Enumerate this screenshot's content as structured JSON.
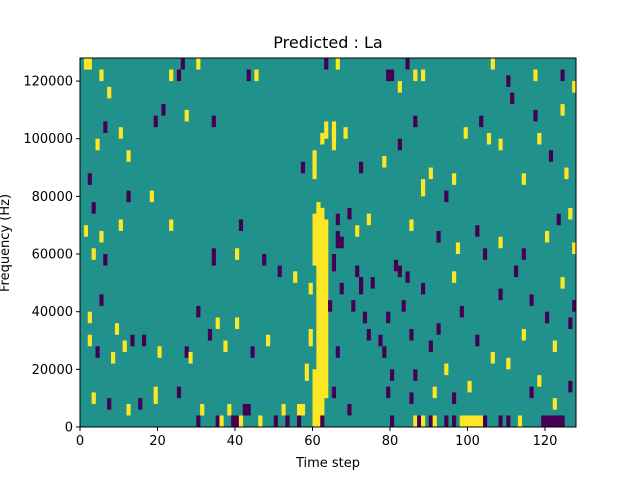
{
  "chart_data": {
    "type": "heatmap",
    "title": "Predicted : La",
    "xlabel": "Time step",
    "ylabel": "Frequency (Hz)",
    "xlim": [
      0,
      128
    ],
    "ylim": [
      0,
      128000
    ],
    "x_ticks": [
      0,
      20,
      40,
      60,
      80,
      100,
      120
    ],
    "y_ticks": [
      0,
      20000,
      40000,
      60000,
      80000,
      100000,
      120000
    ],
    "x_tick_labels": [
      "0",
      "20",
      "40",
      "60",
      "80",
      "100",
      "120"
    ],
    "y_tick_labels": [
      "0",
      "20000",
      "40000",
      "60000",
      "80000",
      "100000",
      "120000"
    ],
    "grid": false,
    "legend": "none",
    "n_time_steps": 128,
    "n_freq_bins": 128,
    "freq_bin_width_hz": 1000,
    "value_levels": [
      0,
      1,
      2
    ],
    "colors": {
      "0": "#440154",
      "1": "#21918c",
      "2": "#fde725"
    },
    "background_value": 1,
    "cells": [
      {
        "t": 60,
        "f0": 0,
        "f1": 20,
        "v": 2
      },
      {
        "t": 61,
        "f0": 0,
        "f1": 78,
        "v": 2
      },
      {
        "t": 62,
        "f0": 0,
        "f1": 76,
        "v": 2
      },
      {
        "t": 63,
        "f0": 10,
        "f1": 72,
        "v": 2
      },
      {
        "t": 59,
        "f0": 28,
        "f1": 34,
        "v": 2
      },
      {
        "t": 59,
        "f0": 46,
        "f1": 50,
        "v": 2
      },
      {
        "t": 60,
        "f0": 56,
        "f1": 74,
        "v": 2
      },
      {
        "t": 58,
        "f0": 16,
        "f1": 22,
        "v": 2
      },
      {
        "t": 60,
        "f0": 86,
        "f1": 96,
        "v": 2
      },
      {
        "t": 63,
        "f0": 100,
        "f1": 106,
        "v": 2
      },
      {
        "t": 62,
        "f0": 0,
        "f1": 4,
        "v": 0
      },
      {
        "t": 64,
        "f0": 40,
        "f1": 44,
        "v": 0
      },
      {
        "t": 65,
        "f0": 100,
        "f1": 106,
        "v": 2
      },
      {
        "t": 66,
        "f0": 70,
        "f1": 74,
        "v": 0
      },
      {
        "t": 66,
        "f0": 62,
        "f1": 68,
        "v": 0
      },
      {
        "t": 67,
        "f0": 62,
        "f1": 66,
        "v": 0
      },
      {
        "t": 65,
        "f0": 54,
        "f1": 60,
        "v": 0
      },
      {
        "t": 67,
        "f0": 46,
        "f1": 50,
        "v": 0
      },
      {
        "t": 66,
        "f0": 24,
        "f1": 28,
        "v": 0
      },
      {
        "t": 65,
        "f0": 10,
        "f1": 14,
        "v": 0
      },
      {
        "t": 69,
        "f0": 4,
        "f1": 8,
        "v": 0
      },
      {
        "t": 70,
        "f0": 40,
        "f1": 44,
        "v": 0
      },
      {
        "t": 71,
        "f0": 66,
        "f1": 70,
        "v": 2
      },
      {
        "t": 69,
        "f0": 72,
        "f1": 76,
        "v": 0
      },
      {
        "t": 71,
        "f0": 52,
        "f1": 56,
        "v": 0
      },
      {
        "t": 72,
        "f0": 46,
        "f1": 52,
        "v": 0
      },
      {
        "t": 73,
        "f0": 36,
        "f1": 40,
        "v": 0
      },
      {
        "t": 74,
        "f0": 30,
        "f1": 34,
        "v": 0
      },
      {
        "t": 75,
        "f0": 48,
        "f1": 52,
        "v": 0
      },
      {
        "t": 74,
        "f0": 70,
        "f1": 74,
        "v": 2
      },
      {
        "t": 77,
        "f0": 28,
        "f1": 32,
        "v": 0
      },
      {
        "t": 78,
        "f0": 24,
        "f1": 28,
        "v": 0
      },
      {
        "t": 79,
        "f0": 36,
        "f1": 40,
        "v": 0
      },
      {
        "t": 79,
        "f0": 10,
        "f1": 14,
        "v": 0
      },
      {
        "t": 80,
        "f0": 16,
        "f1": 20,
        "v": 0
      },
      {
        "t": 81,
        "f0": 54,
        "f1": 58,
        "v": 0
      },
      {
        "t": 82,
        "f0": 52,
        "f1": 56,
        "v": 0
      },
      {
        "t": 80,
        "f0": 0,
        "f1": 4,
        "v": 0
      },
      {
        "t": 84,
        "f0": 50,
        "f1": 54,
        "v": 0
      },
      {
        "t": 85,
        "f0": 8,
        "f1": 12,
        "v": 0
      },
      {
        "t": 86,
        "f0": 0,
        "f1": 4,
        "v": 2
      },
      {
        "t": 87,
        "f0": 0,
        "f1": 4,
        "v": 0
      },
      {
        "t": 88,
        "f0": 0,
        "f1": 4,
        "v": 2
      },
      {
        "t": 90,
        "f0": 0,
        "f1": 4,
        "v": 0
      },
      {
        "t": 91,
        "f0": 0,
        "f1": 4,
        "v": 2
      },
      {
        "t": 94,
        "f0": 0,
        "f1": 4,
        "v": 0
      },
      {
        "t": 96,
        "f0": 0,
        "f1": 4,
        "v": 0
      },
      {
        "t": 98,
        "f0": 0,
        "f1": 4,
        "v": 2
      },
      {
        "t": 99,
        "f0": 0,
        "f1": 4,
        "v": 2
      },
      {
        "t": 100,
        "f0": 0,
        "f1": 4,
        "v": 2
      },
      {
        "t": 101,
        "f0": 0,
        "f1": 4,
        "v": 2
      },
      {
        "t": 102,
        "f0": 0,
        "f1": 4,
        "v": 2
      },
      {
        "t": 103,
        "f0": 0,
        "f1": 4,
        "v": 2
      },
      {
        "t": 104,
        "f0": 0,
        "f1": 4,
        "v": 0
      },
      {
        "t": 108,
        "f0": 0,
        "f1": 4,
        "v": 0
      },
      {
        "t": 110,
        "f0": 0,
        "f1": 4,
        "v": 0
      },
      {
        "t": 113,
        "f0": 0,
        "f1": 4,
        "v": 2
      },
      {
        "t": 119,
        "f0": 0,
        "f1": 4,
        "v": 0
      },
      {
        "t": 120,
        "f0": 0,
        "f1": 4,
        "v": 0
      },
      {
        "t": 121,
        "f0": 0,
        "f1": 4,
        "v": 0
      },
      {
        "t": 122,
        "f0": 0,
        "f1": 4,
        "v": 0
      },
      {
        "t": 123,
        "f0": 0,
        "f1": 4,
        "v": 0
      },
      {
        "t": 124,
        "f0": 0,
        "f1": 4,
        "v": 0
      },
      {
        "t": 39,
        "f0": 0,
        "f1": 4,
        "v": 0
      },
      {
        "t": 40,
        "f0": 0,
        "f1": 4,
        "v": 0
      },
      {
        "t": 41,
        "f0": 0,
        "f1": 4,
        "v": 2
      },
      {
        "t": 42,
        "f0": 4,
        "f1": 8,
        "v": 0
      },
      {
        "t": 43,
        "f0": 4,
        "f1": 8,
        "v": 0
      },
      {
        "t": 46,
        "f0": 0,
        "f1": 4,
        "v": 2
      },
      {
        "t": 50,
        "f0": 0,
        "f1": 4,
        "v": 0
      },
      {
        "t": 52,
        "f0": 4,
        "f1": 8,
        "v": 2
      },
      {
        "t": 53,
        "f0": 0,
        "f1": 4,
        "v": 0
      },
      {
        "t": 56,
        "f0": 0,
        "f1": 4,
        "v": 0
      },
      {
        "t": 56,
        "f0": 4,
        "f1": 8,
        "v": 2
      },
      {
        "t": 57,
        "f0": 4,
        "f1": 8,
        "v": 2
      },
      {
        "t": 35,
        "f0": 0,
        "f1": 4,
        "v": 0
      },
      {
        "t": 36,
        "f0": 0,
        "f1": 4,
        "v": 2
      },
      {
        "t": 38,
        "f0": 4,
        "f1": 8,
        "v": 2
      },
      {
        "t": 30,
        "f0": 0,
        "f1": 4,
        "v": 0
      },
      {
        "t": 31,
        "f0": 4,
        "f1": 8,
        "v": 2
      },
      {
        "t": 25,
        "f0": 10,
        "f1": 14,
        "v": 0
      },
      {
        "t": 19,
        "f0": 8,
        "f1": 14,
        "v": 2
      },
      {
        "t": 15,
        "f0": 6,
        "f1": 10,
        "v": 0
      },
      {
        "t": 12,
        "f0": 4,
        "f1": 8,
        "v": 2
      },
      {
        "t": 7,
        "f0": 6,
        "f1": 10,
        "v": 0
      },
      {
        "t": 3,
        "f0": 8,
        "f1": 12,
        "v": 2
      },
      {
        "t": 2,
        "f0": 28,
        "f1": 32,
        "v": 2
      },
      {
        "t": 4,
        "f0": 24,
        "f1": 28,
        "v": 0
      },
      {
        "t": 8,
        "f0": 22,
        "f1": 26,
        "v": 2
      },
      {
        "t": 11,
        "f0": 26,
        "f1": 30,
        "v": 2
      },
      {
        "t": 13,
        "f0": 28,
        "f1": 32,
        "v": 0
      },
      {
        "t": 16,
        "f0": 28,
        "f1": 32,
        "v": 0
      },
      {
        "t": 20,
        "f0": 24,
        "f1": 28,
        "v": 2
      },
      {
        "t": 27,
        "f0": 24,
        "f1": 28,
        "v": 0
      },
      {
        "t": 28,
        "f0": 22,
        "f1": 26,
        "v": 2
      },
      {
        "t": 33,
        "f0": 30,
        "f1": 34,
        "v": 0
      },
      {
        "t": 37,
        "f0": 26,
        "f1": 30,
        "v": 2
      },
      {
        "t": 44,
        "f0": 24,
        "f1": 28,
        "v": 0
      },
      {
        "t": 48,
        "f0": 28,
        "f1": 32,
        "v": 2
      },
      {
        "t": 2,
        "f0": 36,
        "f1": 40,
        "v": 2
      },
      {
        "t": 5,
        "f0": 42,
        "f1": 46,
        "v": 0
      },
      {
        "t": 9,
        "f0": 32,
        "f1": 36,
        "v": 2
      },
      {
        "t": 30,
        "f0": 38,
        "f1": 42,
        "v": 0
      },
      {
        "t": 35,
        "f0": 34,
        "f1": 38,
        "v": 2
      },
      {
        "t": 40,
        "f0": 34,
        "f1": 38,
        "v": 2
      },
      {
        "t": 3,
        "f0": 58,
        "f1": 62,
        "v": 2
      },
      {
        "t": 6,
        "f0": 56,
        "f1": 60,
        "v": 0
      },
      {
        "t": 5,
        "f0": 64,
        "f1": 68,
        "v": 2
      },
      {
        "t": 1,
        "f0": 66,
        "f1": 70,
        "v": 2
      },
      {
        "t": 3,
        "f0": 74,
        "f1": 78,
        "v": 0
      },
      {
        "t": 10,
        "f0": 68,
        "f1": 72,
        "v": 2
      },
      {
        "t": 34,
        "f0": 56,
        "f1": 62,
        "v": 0
      },
      {
        "t": 40,
        "f0": 58,
        "f1": 62,
        "v": 2
      },
      {
        "t": 41,
        "f0": 68,
        "f1": 72,
        "v": 0
      },
      {
        "t": 47,
        "f0": 56,
        "f1": 60,
        "v": 0
      },
      {
        "t": 51,
        "f0": 52,
        "f1": 56,
        "v": 0
      },
      {
        "t": 55,
        "f0": 50,
        "f1": 54,
        "v": 2
      },
      {
        "t": 2,
        "f0": 84,
        "f1": 88,
        "v": 0
      },
      {
        "t": 4,
        "f0": 96,
        "f1": 100,
        "v": 2
      },
      {
        "t": 12,
        "f0": 92,
        "f1": 96,
        "v": 2
      },
      {
        "t": 12,
        "f0": 78,
        "f1": 82,
        "v": 0
      },
      {
        "t": 18,
        "f0": 78,
        "f1": 82,
        "v": 2
      },
      {
        "t": 23,
        "f0": 68,
        "f1": 72,
        "v": 2
      },
      {
        "t": 6,
        "f0": 102,
        "f1": 106,
        "v": 0
      },
      {
        "t": 10,
        "f0": 100,
        "f1": 104,
        "v": 2
      },
      {
        "t": 19,
        "f0": 104,
        "f1": 108,
        "v": 0
      },
      {
        "t": 21,
        "f0": 108,
        "f1": 112,
        "v": 0
      },
      {
        "t": 27,
        "f0": 106,
        "f1": 110,
        "v": 2
      },
      {
        "t": 34,
        "f0": 104,
        "f1": 108,
        "v": 0
      },
      {
        "t": 1,
        "f0": 124,
        "f1": 128,
        "v": 2
      },
      {
        "t": 2,
        "f0": 124,
        "f1": 128,
        "v": 2
      },
      {
        "t": 5,
        "f0": 120,
        "f1": 124,
        "v": 2
      },
      {
        "t": 7,
        "f0": 114,
        "f1": 118,
        "v": 2
      },
      {
        "t": 23,
        "f0": 120,
        "f1": 124,
        "v": 2
      },
      {
        "t": 25,
        "f0": 120,
        "f1": 124,
        "v": 0
      },
      {
        "t": 26,
        "f0": 124,
        "f1": 128,
        "v": 0
      },
      {
        "t": 30,
        "f0": 124,
        "f1": 128,
        "v": 2
      },
      {
        "t": 43,
        "f0": 120,
        "f1": 124,
        "v": 0
      },
      {
        "t": 45,
        "f0": 120,
        "f1": 124,
        "v": 2
      },
      {
        "t": 63,
        "f0": 124,
        "f1": 128,
        "v": 0
      },
      {
        "t": 66,
        "f0": 124,
        "f1": 128,
        "v": 2
      },
      {
        "t": 79,
        "f0": 120,
        "f1": 124,
        "v": 0
      },
      {
        "t": 80,
        "f0": 120,
        "f1": 124,
        "v": 0
      },
      {
        "t": 82,
        "f0": 116,
        "f1": 120,
        "v": 2
      },
      {
        "t": 84,
        "f0": 124,
        "f1": 128,
        "v": 0
      },
      {
        "t": 86,
        "f0": 120,
        "f1": 124,
        "v": 2
      },
      {
        "t": 88,
        "f0": 120,
        "f1": 124,
        "v": 2
      },
      {
        "t": 106,
        "f0": 124,
        "f1": 128,
        "v": 2
      },
      {
        "t": 110,
        "f0": 118,
        "f1": 122,
        "v": 0
      },
      {
        "t": 117,
        "f0": 120,
        "f1": 124,
        "v": 2
      },
      {
        "t": 124,
        "f0": 120,
        "f1": 124,
        "v": 0
      },
      {
        "t": 127,
        "f0": 116,
        "f1": 120,
        "v": 2
      },
      {
        "t": 117,
        "f0": 106,
        "f1": 110,
        "v": 0
      },
      {
        "t": 124,
        "f0": 108,
        "f1": 112,
        "v": 2
      },
      {
        "t": 111,
        "f0": 112,
        "f1": 116,
        "v": 0
      },
      {
        "t": 57,
        "f0": 88,
        "f1": 92,
        "v": 0
      },
      {
        "t": 62,
        "f0": 98,
        "f1": 102,
        "v": 2
      },
      {
        "t": 65,
        "f0": 96,
        "f1": 104,
        "v": 2
      },
      {
        "t": 68,
        "f0": 100,
        "f1": 104,
        "v": 2
      },
      {
        "t": 72,
        "f0": 88,
        "f1": 92,
        "v": 0
      },
      {
        "t": 78,
        "f0": 90,
        "f1": 94,
        "v": 2
      },
      {
        "t": 82,
        "f0": 96,
        "f1": 100,
        "v": 0
      },
      {
        "t": 86,
        "f0": 104,
        "f1": 108,
        "v": 0
      },
      {
        "t": 88,
        "f0": 80,
        "f1": 86,
        "v": 2
      },
      {
        "t": 90,
        "f0": 86,
        "f1": 90,
        "v": 2
      },
      {
        "t": 94,
        "f0": 78,
        "f1": 82,
        "v": 0
      },
      {
        "t": 96,
        "f0": 84,
        "f1": 88,
        "v": 2
      },
      {
        "t": 99,
        "f0": 100,
        "f1": 104,
        "v": 2
      },
      {
        "t": 103,
        "f0": 104,
        "f1": 108,
        "v": 0
      },
      {
        "t": 105,
        "f0": 98,
        "f1": 102,
        "v": 2
      },
      {
        "t": 108,
        "f0": 96,
        "f1": 100,
        "v": 2
      },
      {
        "t": 114,
        "f0": 84,
        "f1": 88,
        "v": 2
      },
      {
        "t": 118,
        "f0": 98,
        "f1": 102,
        "v": 2
      },
      {
        "t": 121,
        "f0": 92,
        "f1": 96,
        "v": 0
      },
      {
        "t": 125,
        "f0": 86,
        "f1": 90,
        "v": 2
      },
      {
        "t": 88,
        "f0": 46,
        "f1": 50,
        "v": 0
      },
      {
        "t": 90,
        "f0": 26,
        "f1": 30,
        "v": 0
      },
      {
        "t": 92,
        "f0": 32,
        "f1": 36,
        "v": 0
      },
      {
        "t": 94,
        "f0": 18,
        "f1": 22,
        "v": 2
      },
      {
        "t": 96,
        "f0": 50,
        "f1": 54,
        "v": 2
      },
      {
        "t": 98,
        "f0": 38,
        "f1": 42,
        "v": 0
      },
      {
        "t": 100,
        "f0": 12,
        "f1": 16,
        "v": 2
      },
      {
        "t": 102,
        "f0": 28,
        "f1": 32,
        "v": 0
      },
      {
        "t": 104,
        "f0": 58,
        "f1": 62,
        "v": 0
      },
      {
        "t": 106,
        "f0": 22,
        "f1": 26,
        "v": 2
      },
      {
        "t": 108,
        "f0": 44,
        "f1": 48,
        "v": 0
      },
      {
        "t": 110,
        "f0": 20,
        "f1": 24,
        "v": 2
      },
      {
        "t": 112,
        "f0": 52,
        "f1": 56,
        "v": 0
      },
      {
        "t": 114,
        "f0": 30,
        "f1": 34,
        "v": 2
      },
      {
        "t": 116,
        "f0": 42,
        "f1": 46,
        "v": 0
      },
      {
        "t": 118,
        "f0": 14,
        "f1": 18,
        "v": 2
      },
      {
        "t": 120,
        "f0": 36,
        "f1": 40,
        "v": 0
      },
      {
        "t": 122,
        "f0": 26,
        "f1": 30,
        "v": 2
      },
      {
        "t": 124,
        "f0": 48,
        "f1": 52,
        "v": 2
      },
      {
        "t": 126,
        "f0": 34,
        "f1": 38,
        "v": 0
      },
      {
        "t": 127,
        "f0": 60,
        "f1": 64,
        "v": 2
      },
      {
        "t": 120,
        "f0": 64,
        "f1": 68,
        "v": 2
      },
      {
        "t": 123,
        "f0": 70,
        "f1": 74,
        "v": 0
      },
      {
        "t": 126,
        "f0": 72,
        "f1": 76,
        "v": 2
      },
      {
        "t": 114,
        "f0": 58,
        "f1": 62,
        "v": 0
      },
      {
        "t": 108,
        "f0": 62,
        "f1": 66,
        "v": 2
      },
      {
        "t": 102,
        "f0": 66,
        "f1": 70,
        "v": 0
      },
      {
        "t": 97,
        "f0": 60,
        "f1": 64,
        "v": 2
      },
      {
        "t": 92,
        "f0": 64,
        "f1": 68,
        "v": 0
      },
      {
        "t": 85,
        "f0": 68,
        "f1": 72,
        "v": 2
      },
      {
        "t": 83,
        "f0": 40,
        "f1": 44,
        "v": 0
      },
      {
        "t": 85,
        "f0": 30,
        "f1": 34,
        "v": 0
      },
      {
        "t": 86,
        "f0": 16,
        "f1": 20,
        "v": 0
      },
      {
        "t": 91,
        "f0": 10,
        "f1": 14,
        "v": 2
      },
      {
        "t": 96,
        "f0": 8,
        "f1": 12,
        "v": 0
      },
      {
        "t": 116,
        "f0": 10,
        "f1": 14,
        "v": 0
      },
      {
        "t": 122,
        "f0": 6,
        "f1": 10,
        "v": 2
      },
      {
        "t": 126,
        "f0": 12,
        "f1": 16,
        "v": 0
      },
      {
        "t": 127,
        "f0": 40,
        "f1": 44,
        "v": 0
      }
    ]
  }
}
